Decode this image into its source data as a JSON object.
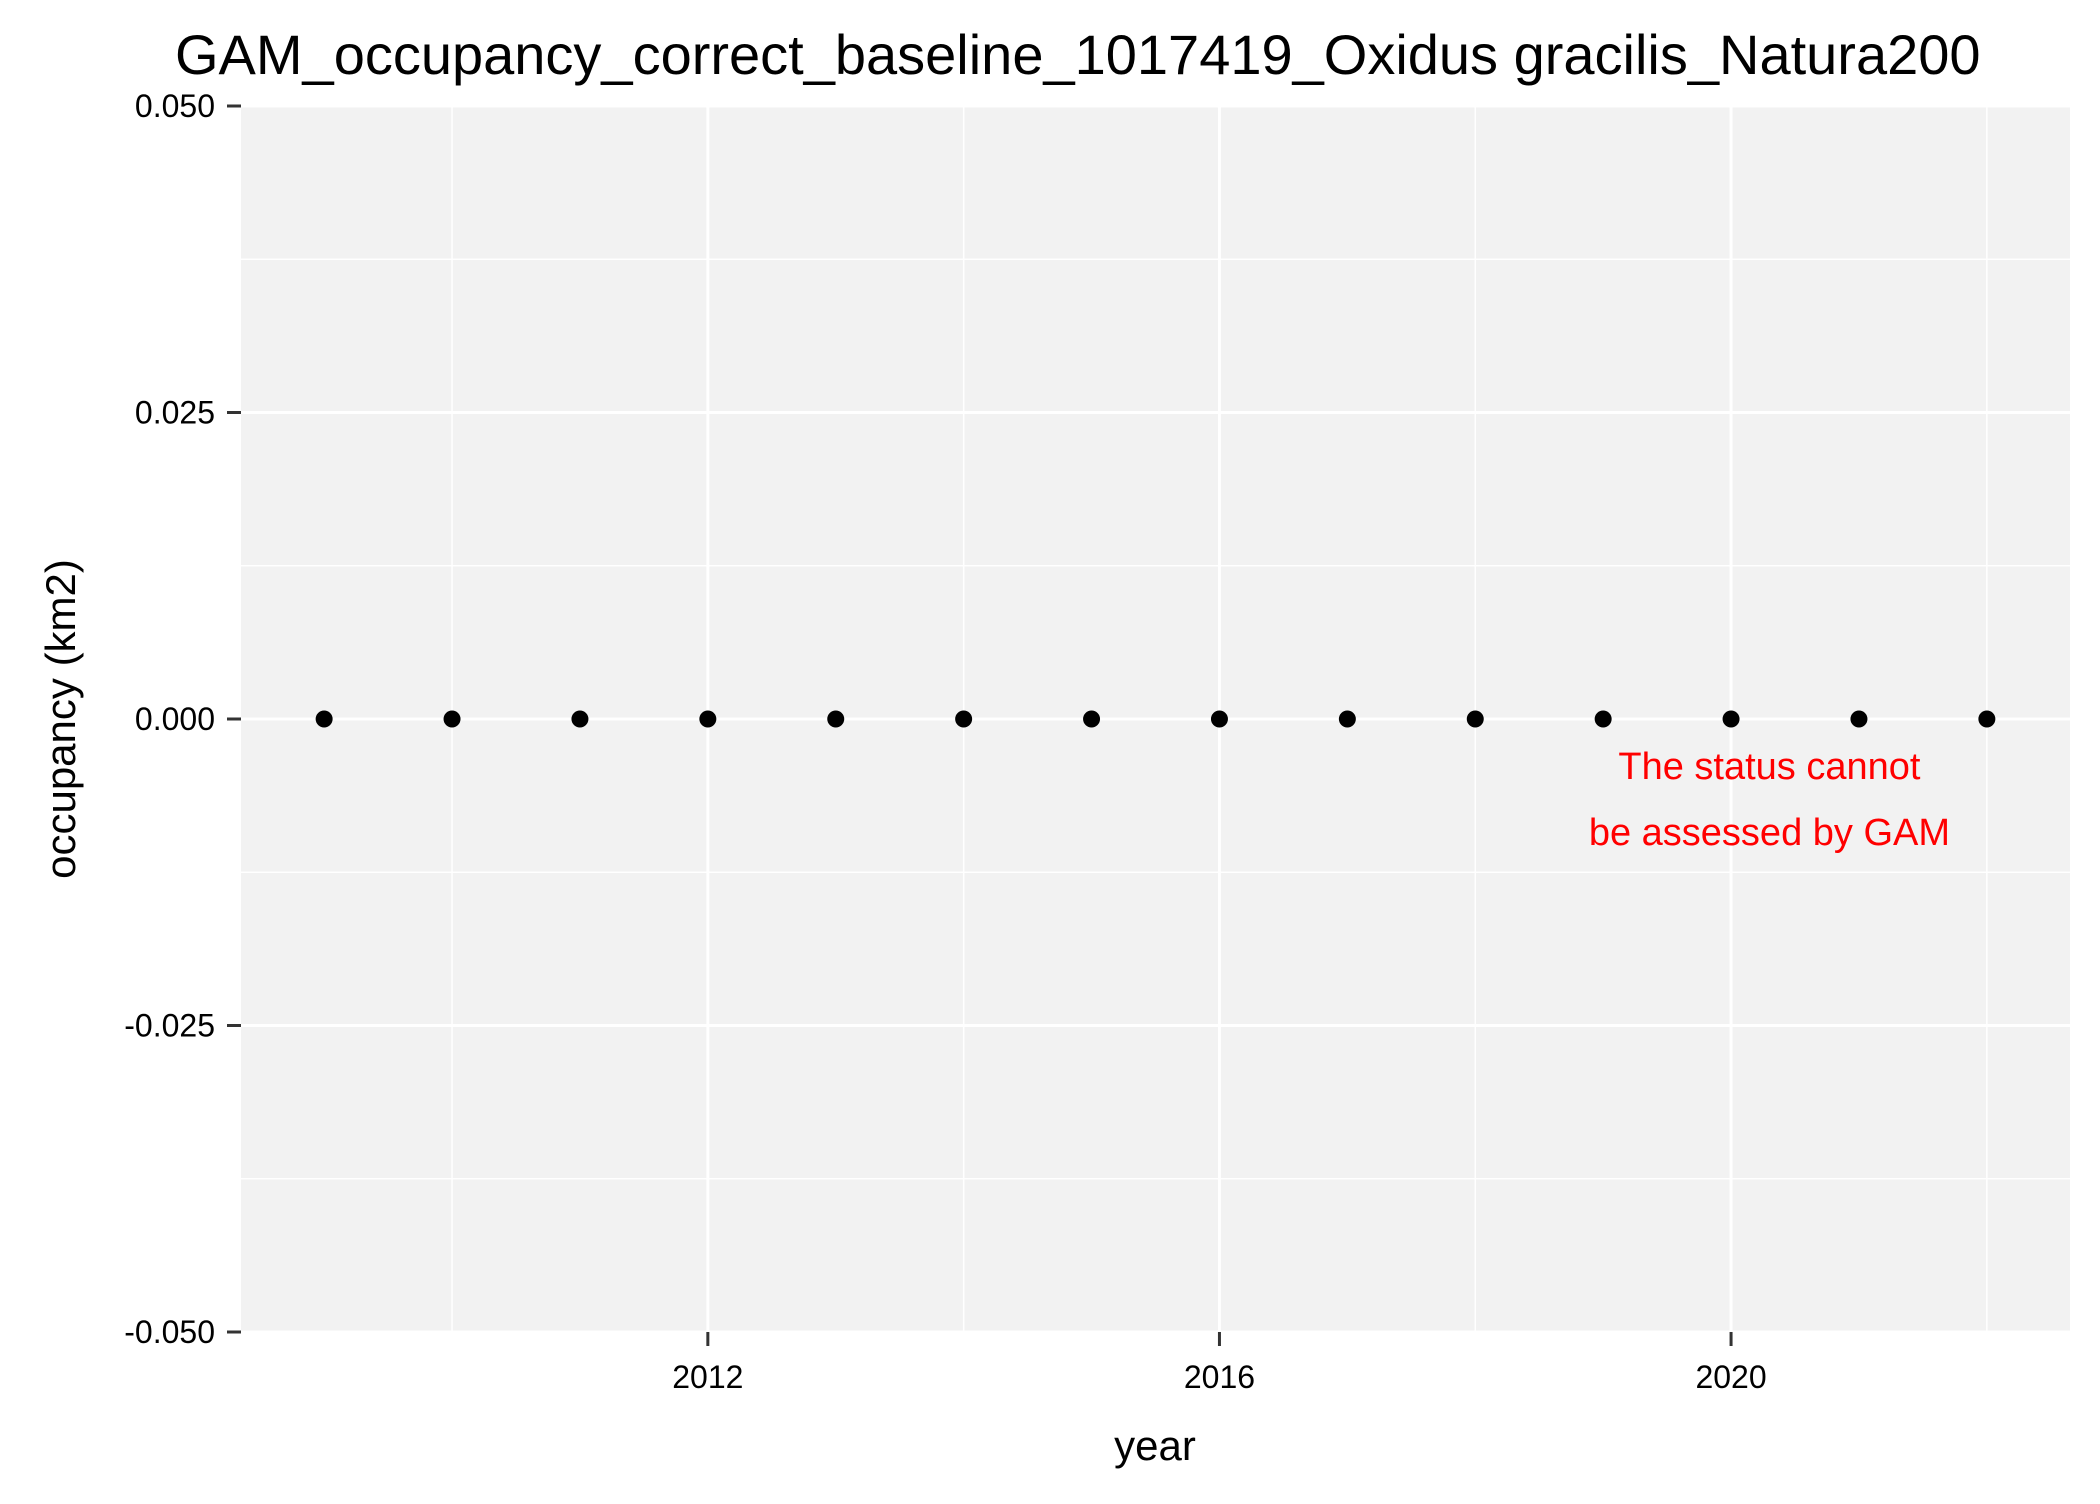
{
  "chart_data": {
    "type": "scatter",
    "title": "GAM_occupancy_correct_baseline_1017419_Oxidus gracilis_Natura200",
    "xlabel": "year",
    "ylabel": "occupancy (km2)",
    "xlim": [
      2008.35,
      2022.65
    ],
    "ylim": [
      -0.05,
      0.05
    ],
    "x_ticks": [
      2012,
      2016,
      2020
    ],
    "x_tick_labels": [
      "2012",
      "2016",
      "2020"
    ],
    "y_ticks": [
      0.05,
      0.025,
      0,
      -0.025,
      -0.05
    ],
    "y_tick_labels": [
      "0.050",
      "0.025",
      "0.000",
      "-0.025",
      "-0.050"
    ],
    "x": [
      2009,
      2010,
      2011,
      2012,
      2013,
      2014,
      2015,
      2016,
      2017,
      2018,
      2019,
      2020,
      2021,
      2022
    ],
    "y": [
      0,
      0,
      0,
      0,
      0,
      0,
      0,
      0,
      0,
      0,
      0,
      0,
      0,
      0
    ],
    "annotation": {
      "lines": [
        "The status cannot",
        "be assessed by GAM"
      ],
      "color": "#ff0000"
    },
    "grid": true,
    "legend": "none",
    "panel_background": "#f2f2f2",
    "grid_color": "#ffffff",
    "point_color": "#000000"
  }
}
